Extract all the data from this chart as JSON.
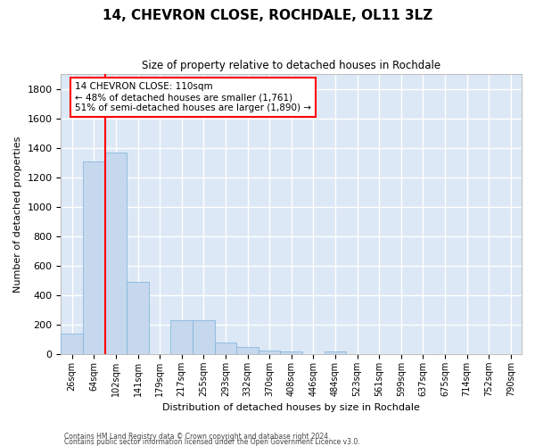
{
  "title": "14, CHEVRON CLOSE, ROCHDALE, OL11 3LZ",
  "subtitle": "Size of property relative to detached houses in Rochdale",
  "xlabel": "Distribution of detached houses by size in Rochdale",
  "ylabel": "Number of detached properties",
  "bar_color": "#c5d8ee",
  "bar_edge_color": "#7ab0d8",
  "fig_bg_color": "#ffffff",
  "axes_bg_color": "#dce8f5",
  "grid_color": "#ffffff",
  "bin_labels": [
    "26sqm",
    "64sqm",
    "102sqm",
    "141sqm",
    "179sqm",
    "217sqm",
    "255sqm",
    "293sqm",
    "332sqm",
    "370sqm",
    "408sqm",
    "446sqm",
    "484sqm",
    "523sqm",
    "561sqm",
    "599sqm",
    "637sqm",
    "675sqm",
    "714sqm",
    "752sqm",
    "790sqm"
  ],
  "bar_values": [
    140,
    1310,
    1370,
    490,
    0,
    230,
    230,
    80,
    50,
    25,
    20,
    0,
    20,
    0,
    0,
    0,
    0,
    0,
    0,
    0,
    0
  ],
  "ylim_max": 1900,
  "yticks": [
    0,
    200,
    400,
    600,
    800,
    1000,
    1200,
    1400,
    1600,
    1800
  ],
  "property_vline_x": 1.5,
  "property_label": "14 CHEVRON CLOSE: 110sqm",
  "anno_line1": "← 48% of detached houses are smaller (1,761)",
  "anno_line2": "51% of semi-detached houses are larger (1,890) →",
  "footer1": "Contains HM Land Registry data © Crown copyright and database right 2024.",
  "footer2": "Contains public sector information licensed under the Open Government Licence v3.0."
}
